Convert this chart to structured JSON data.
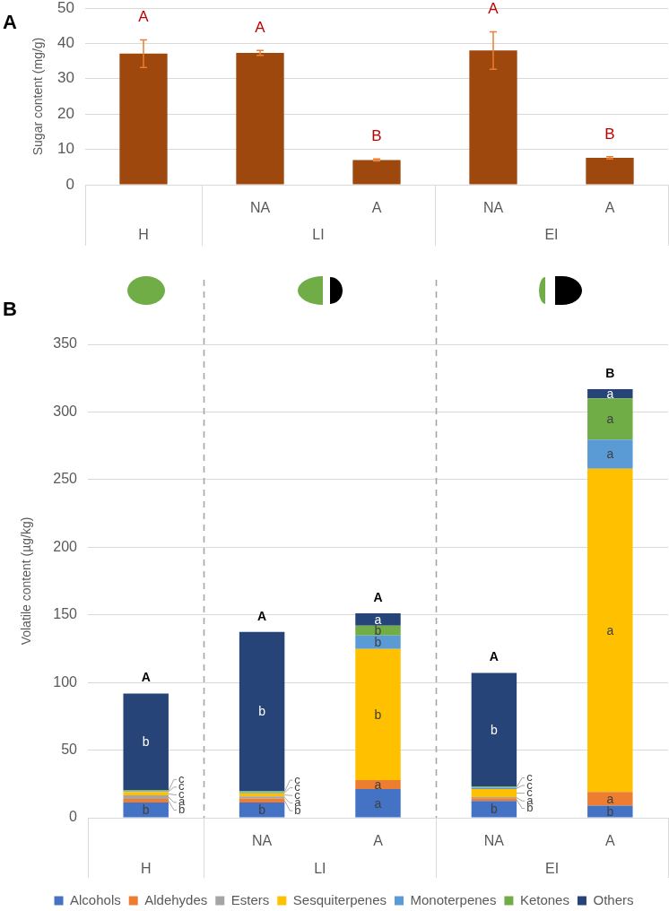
{
  "chart_data": [
    {
      "type": "bar",
      "title": "A",
      "ylabel": "Sugar content (mg/g)",
      "categories": [
        null,
        "NA",
        "A",
        "NA",
        "A"
      ],
      "annotations": [
        "H",
        "LI",
        "EI"
      ],
      "values": [
        37.1,
        37.3,
        7.0,
        38.0,
        7.6
      ],
      "errors": [
        3.9,
        0.7,
        0.3,
        5.3,
        0.3
      ],
      "color": "#9e480e",
      "value_labels": [
        "A",
        "A",
        "B",
        "A",
        "B"
      ],
      "ylim": [
        0,
        50
      ],
      "yticks": [
        0,
        10,
        20,
        30,
        40,
        50
      ],
      "grid": "y"
    },
    {
      "type": "bar",
      "title": "B",
      "ylabel": "Volatile content (µg/kg)",
      "categories": [
        null,
        "NA",
        "A",
        "NA",
        "A"
      ],
      "annotations": [
        "H",
        "LI",
        "EI"
      ],
      "stacked": true,
      "series": [
        {
          "name": "Alcohols",
          "color": "#4472c4",
          "values": [
            11.2,
            11.2,
            21.2,
            12.4,
            9.0
          ],
          "value_labels": [
            "b",
            "b",
            "a",
            "b",
            "b"
          ]
        },
        {
          "name": "Aldehydes",
          "color": "#ed7d31",
          "values": [
            2.7,
            3.0,
            6.7,
            2.0,
            10.0
          ],
          "value_labels": [
            "b",
            "b",
            "a",
            "b",
            "a"
          ]
        },
        {
          "name": "Esters",
          "color": "#a5a5a5",
          "values": [
            2.7,
            1.5,
            0,
            0.8,
            0
          ],
          "value_labels": [
            "a",
            "a",
            null,
            "a",
            null
          ]
        },
        {
          "name": "Sesquiterpenes",
          "color": "#ffc000",
          "values": [
            2.4,
            2.4,
            96.9,
            6.0,
            239
          ],
          "value_labels": [
            "c",
            "c",
            "b",
            "c",
            "a"
          ]
        },
        {
          "name": "Monoterpenes",
          "color": "#5b9bd5",
          "values": [
            0.6,
            0.8,
            10.0,
            1.0,
            21.5
          ],
          "value_labels": [
            "c",
            "c",
            "b",
            "c",
            "a"
          ]
        },
        {
          "name": "Ketones",
          "color": "#70ad47",
          "values": [
            0.8,
            0.8,
            7.3,
            0.8,
            30.5
          ],
          "value_labels": [
            "c",
            "c",
            "b",
            "c",
            "a"
          ]
        },
        {
          "name": "Others",
          "color": "#264478",
          "values": [
            71.4,
            117.6,
            9.1,
            84.0,
            6.9
          ],
          "value_labels": [
            "b",
            "b",
            "a",
            "b",
            "a"
          ]
        }
      ],
      "totals": [
        "A",
        "A",
        "A",
        "A",
        "B"
      ],
      "ylim": [
        0,
        350
      ],
      "yticks": [
        0,
        50,
        100,
        150,
        200,
        250,
        300,
        350
      ],
      "grid": "y",
      "legend": "bottom"
    }
  ]
}
